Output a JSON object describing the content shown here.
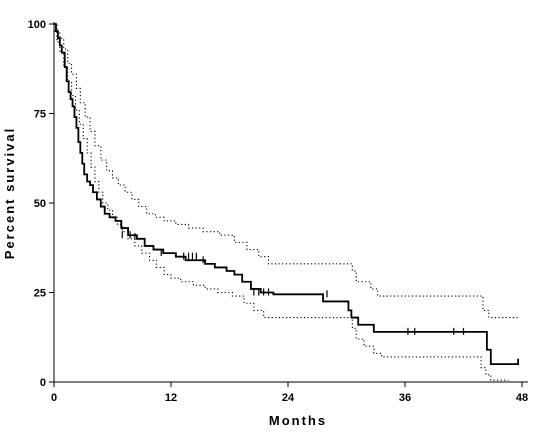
{
  "chart_data": {
    "type": "line",
    "title": "",
    "xlabel": "Months",
    "ylabel": "Percent survival",
    "xlim": [
      0,
      48
    ],
    "ylim": [
      0,
      100
    ],
    "x_ticks": [
      0,
      12,
      24,
      36,
      48
    ],
    "y_ticks": [
      0,
      25,
      50,
      75,
      100
    ],
    "x_tick_labels": [
      "0",
      "12",
      "24",
      "36",
      "48"
    ],
    "y_tick_labels": [
      "0",
      "25",
      "50",
      "75",
      "100"
    ],
    "grid": false,
    "legend": "none",
    "series": [
      {
        "style": "solid",
        "color": "#000000",
        "steps": [
          [
            0,
            100
          ],
          [
            0.2,
            98
          ],
          [
            0.4,
            96
          ],
          [
            0.6,
            94
          ],
          [
            0.8,
            92
          ],
          [
            1.1,
            88
          ],
          [
            1.3,
            84
          ],
          [
            1.5,
            81
          ],
          [
            1.7,
            79
          ],
          [
            1.9,
            77
          ],
          [
            2.1,
            74
          ],
          [
            2.3,
            71
          ],
          [
            2.5,
            67
          ],
          [
            2.7,
            64
          ],
          [
            2.9,
            61
          ],
          [
            3.1,
            58
          ],
          [
            3.4,
            56
          ],
          [
            3.7,
            55
          ],
          [
            4.0,
            53
          ],
          [
            4.4,
            51
          ],
          [
            4.8,
            49
          ],
          [
            5.2,
            47
          ],
          [
            5.7,
            46
          ],
          [
            6.3,
            45
          ],
          [
            6.9,
            43
          ],
          [
            7.6,
            41
          ],
          [
            8.5,
            40
          ],
          [
            9.3,
            38
          ],
          [
            10.2,
            37
          ],
          [
            11.2,
            36
          ],
          [
            12.5,
            35
          ],
          [
            13.5,
            34
          ],
          [
            15.5,
            33
          ],
          [
            16.5,
            32
          ],
          [
            17.7,
            31
          ],
          [
            18.5,
            30
          ],
          [
            19.3,
            28
          ],
          [
            20.2,
            26
          ],
          [
            21.2,
            25
          ],
          [
            22.5,
            24.5
          ],
          [
            27.0,
            24.5
          ],
          [
            27.6,
            22.5
          ],
          [
            30.2,
            20
          ],
          [
            30.5,
            18
          ],
          [
            31.2,
            16
          ],
          [
            32.8,
            14
          ],
          [
            43.5,
            14
          ],
          [
            44.4,
            9
          ],
          [
            44.8,
            5
          ],
          [
            47.6,
            5
          ],
          [
            47.6,
            6.5
          ]
        ],
        "end_x": 47.6,
        "censored": [
          [
            7.0,
            41
          ],
          [
            7.8,
            41
          ],
          [
            8.3,
            40.5
          ],
          [
            11.0,
            36
          ],
          [
            13.3,
            35
          ],
          [
            13.8,
            35
          ],
          [
            14.2,
            35
          ],
          [
            14.6,
            35
          ],
          [
            15.3,
            34
          ],
          [
            20.5,
            25
          ],
          [
            21.0,
            25
          ],
          [
            21.5,
            25
          ],
          [
            22.0,
            25
          ],
          [
            28.0,
            24.5
          ],
          [
            36.3,
            14
          ],
          [
            37.0,
            14
          ],
          [
            41.0,
            14
          ],
          [
            42.0,
            14
          ]
        ]
      },
      {
        "style": "dotted",
        "color": "#000000",
        "steps": [
          [
            0,
            100
          ],
          [
            0.3,
            98
          ],
          [
            0.6,
            96
          ],
          [
            1.0,
            93
          ],
          [
            1.4,
            89
          ],
          [
            1.8,
            86
          ],
          [
            2.3,
            82
          ],
          [
            2.7,
            78
          ],
          [
            3.2,
            74
          ],
          [
            3.7,
            70
          ],
          [
            4.2,
            66
          ],
          [
            4.8,
            62
          ],
          [
            5.4,
            59
          ],
          [
            6.0,
            57
          ],
          [
            6.6,
            55
          ],
          [
            7.3,
            53
          ],
          [
            8.0,
            51
          ],
          [
            8.7,
            49
          ],
          [
            9.5,
            47
          ],
          [
            10.4,
            46
          ],
          [
            11.3,
            45
          ],
          [
            12.5,
            44
          ],
          [
            13.8,
            43
          ],
          [
            15.3,
            42
          ],
          [
            17.0,
            41
          ],
          [
            18.5,
            39
          ],
          [
            19.8,
            37
          ],
          [
            21.0,
            35
          ],
          [
            22.0,
            33
          ],
          [
            30.3,
            33
          ],
          [
            30.6,
            31
          ],
          [
            31.0,
            28
          ],
          [
            32.5,
            26
          ],
          [
            33.2,
            24
          ],
          [
            43.2,
            24
          ],
          [
            44.0,
            20
          ],
          [
            44.6,
            18
          ],
          [
            47.6,
            18
          ]
        ],
        "end_x": 47.6,
        "censored": []
      },
      {
        "style": "dotted",
        "color": "#000000",
        "steps": [
          [
            0,
            98
          ],
          [
            0.3,
            95
          ],
          [
            0.6,
            92
          ],
          [
            1.0,
            88
          ],
          [
            1.4,
            84
          ],
          [
            1.8,
            80
          ],
          [
            2.2,
            76
          ],
          [
            2.6,
            72
          ],
          [
            3.0,
            68
          ],
          [
            3.4,
            64
          ],
          [
            3.8,
            60
          ],
          [
            4.2,
            56
          ],
          [
            4.6,
            53
          ],
          [
            5.0,
            50
          ],
          [
            5.5,
            48
          ],
          [
            6.0,
            46
          ],
          [
            6.5,
            44
          ],
          [
            7.0,
            42
          ],
          [
            7.6,
            40
          ],
          [
            8.3,
            38
          ],
          [
            9.0,
            36
          ],
          [
            9.8,
            34
          ],
          [
            10.5,
            32
          ],
          [
            11.3,
            30
          ],
          [
            12.0,
            29
          ],
          [
            13.0,
            28
          ],
          [
            14.3,
            27
          ],
          [
            15.5,
            26
          ],
          [
            16.8,
            25
          ],
          [
            18.3,
            24
          ],
          [
            19.5,
            22
          ],
          [
            20.5,
            20
          ],
          [
            21.5,
            18
          ],
          [
            30.3,
            18
          ],
          [
            30.6,
            15
          ],
          [
            31.0,
            12
          ],
          [
            31.8,
            10
          ],
          [
            32.8,
            8
          ],
          [
            33.6,
            7
          ],
          [
            43.0,
            7
          ],
          [
            43.8,
            4
          ],
          [
            44.3,
            2
          ],
          [
            44.8,
            0.5
          ],
          [
            46.6,
            0.5
          ]
        ],
        "end_x": 46.6,
        "censored": []
      }
    ]
  }
}
